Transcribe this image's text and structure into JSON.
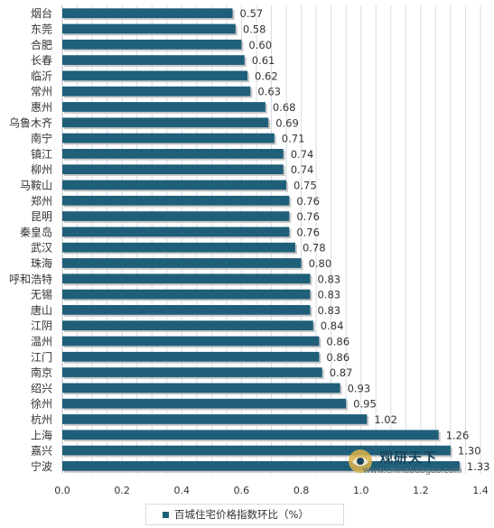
{
  "chart_data": {
    "type": "bar",
    "orientation": "horizontal",
    "categories": [
      "烟台",
      "东莞",
      "合肥",
      "长春",
      "临沂",
      "常州",
      "惠州",
      "乌鲁木齐",
      "南宁",
      "镇江",
      "柳州",
      "马鞍山",
      "郑州",
      "昆明",
      "秦皇岛",
      "武汉",
      "珠海",
      "呼和浩特",
      "无锡",
      "唐山",
      "江阴",
      "温州",
      "江门",
      "南京",
      "绍兴",
      "徐州",
      "杭州",
      "上海",
      "嘉兴",
      "宁波"
    ],
    "series": [
      {
        "name": "百城住宅价格指数环比（%）",
        "values": [
          0.57,
          0.58,
          0.6,
          0.61,
          0.62,
          0.63,
          0.68,
          0.69,
          0.71,
          0.74,
          0.74,
          0.75,
          0.76,
          0.76,
          0.76,
          0.78,
          0.8,
          0.83,
          0.83,
          0.83,
          0.84,
          0.86,
          0.86,
          0.87,
          0.93,
          0.95,
          1.02,
          1.26,
          1.3,
          1.33
        ],
        "labels": [
          "0.57",
          "0.58",
          "0.60",
          "0.61",
          "0.62",
          "0.63",
          "0.68",
          "0.69",
          "0.71",
          "0.74",
          "0.74",
          "0.75",
          "0.76",
          "0.76",
          "0.76",
          "0.78",
          "0.80",
          "0.83",
          "0.83",
          "0.83",
          "0.84",
          "0.86",
          "0.86",
          "0.87",
          "0.93",
          "0.95",
          "1.02",
          "1.26",
          "1.30",
          "1.33"
        ]
      }
    ],
    "xlim": [
      0,
      1.4
    ],
    "x_ticks": [
      "0.0",
      "0.2",
      "0.4",
      "0.6",
      "0.8",
      "1.0",
      "1.2",
      "1.4"
    ],
    "grid": true,
    "legend_position": "bottom"
  },
  "legend": {
    "label": "百城住宅价格指数环比（%）"
  },
  "colors": {
    "bar": "#1f5f7a",
    "bar_shadow": "#c8c8c8",
    "grid": "#d6dde3",
    "text": "#333333"
  },
  "watermark": {
    "name": "观研天下",
    "url": "www.chinabaogao.com"
  }
}
